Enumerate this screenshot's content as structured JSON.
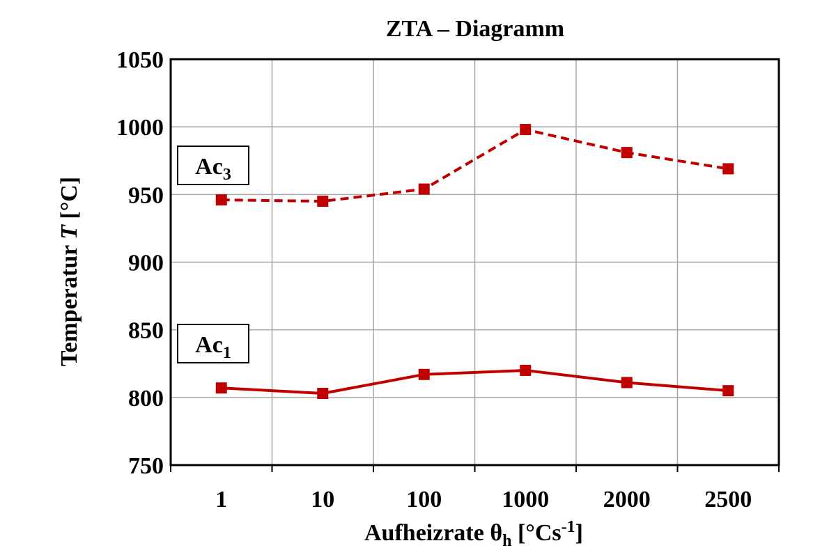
{
  "chart_data": {
    "type": "line",
    "title": "ZTA – Diagramm",
    "xlabel": "Aufheizrate θh [°Cs-1]",
    "xlabel_parts": {
      "main": "Aufheizrate θ",
      "sub": "h",
      "unit_pre": " [°Cs",
      "sup": "-1",
      "unit_post": "]"
    },
    "ylabel": "Temperatur T [°C]",
    "ylabel_parts": {
      "pre": "Temperatur ",
      "var": "T",
      "post": " [°C]"
    },
    "categories": [
      "1",
      "10",
      "100",
      "1000",
      "2000",
      "2500"
    ],
    "ylim": [
      750,
      1050
    ],
    "yticks": [
      750,
      800,
      850,
      900,
      950,
      1000,
      1050
    ],
    "grid": true,
    "series": [
      {
        "name": "Ac3",
        "label_main": "Ac",
        "label_sub": "3",
        "style": "dashed",
        "color": "#c00000",
        "values": [
          946,
          945,
          954,
          998,
          981,
          969
        ]
      },
      {
        "name": "Ac1",
        "label_main": "Ac",
        "label_sub": "1",
        "style": "solid",
        "color": "#c00000",
        "values": [
          807,
          803,
          817,
          820,
          811,
          805
        ]
      }
    ]
  }
}
